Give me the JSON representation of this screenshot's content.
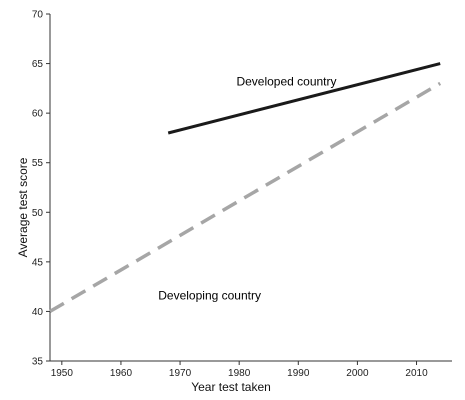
{
  "chart_data": {
    "type": "line",
    "xlabel": "Year test taken",
    "ylabel": "Average test score",
    "xlim": [
      1948,
      2016
    ],
    "ylim": [
      35,
      70
    ],
    "xticks": [
      1950,
      1960,
      1970,
      1980,
      1990,
      2000,
      2010
    ],
    "yticks": [
      35,
      40,
      45,
      50,
      55,
      60,
      65,
      70
    ],
    "grid": false,
    "series": [
      {
        "name": "Developed country",
        "x": [
          1968,
          2014
        ],
        "y": [
          58,
          65
        ],
        "color": "#1a1a1a",
        "style": "solid"
      },
      {
        "name": "Developing country",
        "x": [
          1948,
          2014
        ],
        "y": [
          40,
          63
        ],
        "color": "#a6a6a6",
        "style": "dashed"
      }
    ]
  }
}
